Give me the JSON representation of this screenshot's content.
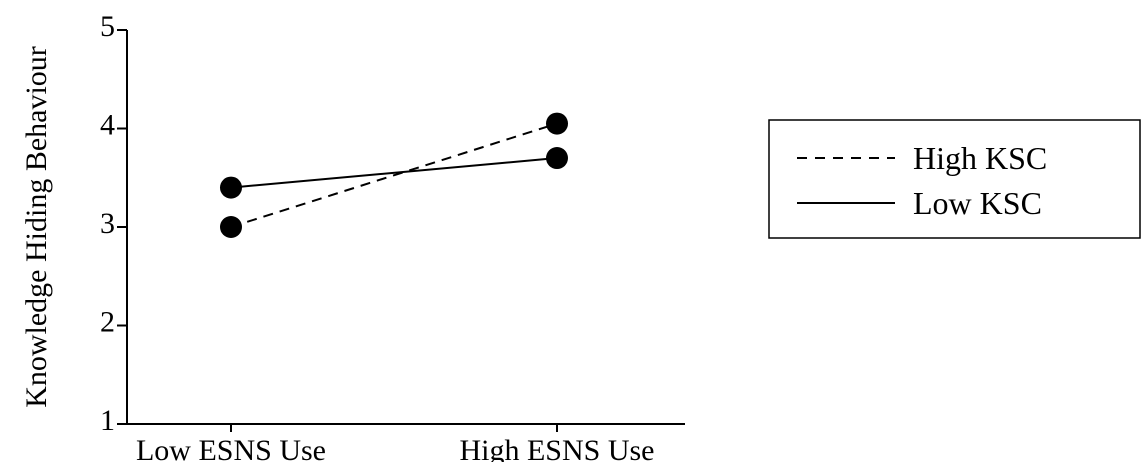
{
  "chart_data": {
    "type": "line",
    "categories": [
      "Low ESNS Use",
      "High ESNS Use"
    ],
    "ylabel": "Knowledge Hiding Behaviour",
    "xlabel": "",
    "ylim": [
      1,
      5
    ],
    "yticks": [
      1,
      2,
      3,
      4,
      5
    ],
    "series": [
      {
        "name": "High KSC",
        "values": [
          3.0,
          4.05
        ],
        "style": "dashed",
        "color": "#000000"
      },
      {
        "name": "Low KSC",
        "values": [
          3.4,
          3.7
        ],
        "style": "solid",
        "color": "#000000"
      }
    ],
    "legend": {
      "position": "right",
      "entries": [
        "High KSC",
        "Low KSC"
      ]
    },
    "grid": false
  }
}
